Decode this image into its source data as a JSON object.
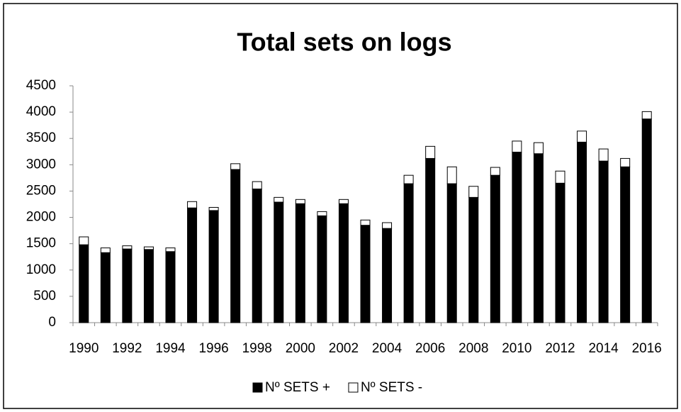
{
  "chart_data": {
    "type": "stacked_bar",
    "title": "Total sets on logs",
    "categories": [
      "1990",
      null,
      "1992",
      null,
      "1994",
      null,
      "1996",
      null,
      "1998",
      null,
      "2000",
      null,
      "2002",
      null,
      "2004",
      null,
      "2006",
      null,
      "2008",
      null,
      "2010",
      null,
      "2012",
      null,
      "2014",
      null,
      "2016"
    ],
    "series": [
      {
        "name": "Nº SETS +",
        "color": "#000000",
        "values": [
          1480,
          1330,
          1400,
          1390,
          1350,
          2180,
          2130,
          2910,
          2540,
          2290,
          2260,
          2030,
          2260,
          1850,
          1790,
          2640,
          3120,
          2640,
          2380,
          2800,
          3240,
          3210,
          2650,
          3430,
          3070,
          2960,
          3870
        ]
      },
      {
        "name": "Nº SETS -",
        "color": "#ffffff",
        "values": [
          150,
          90,
          60,
          50,
          70,
          120,
          60,
          110,
          140,
          90,
          80,
          80,
          80,
          100,
          110,
          160,
          230,
          320,
          210,
          150,
          210,
          210,
          230,
          210,
          230,
          160,
          140
        ]
      }
    ],
    "ylim": [
      0,
      4500
    ],
    "yticks": [
      0,
      500,
      1000,
      1500,
      2000,
      2500,
      3000,
      3500,
      4000,
      4500
    ],
    "grid": false
  }
}
